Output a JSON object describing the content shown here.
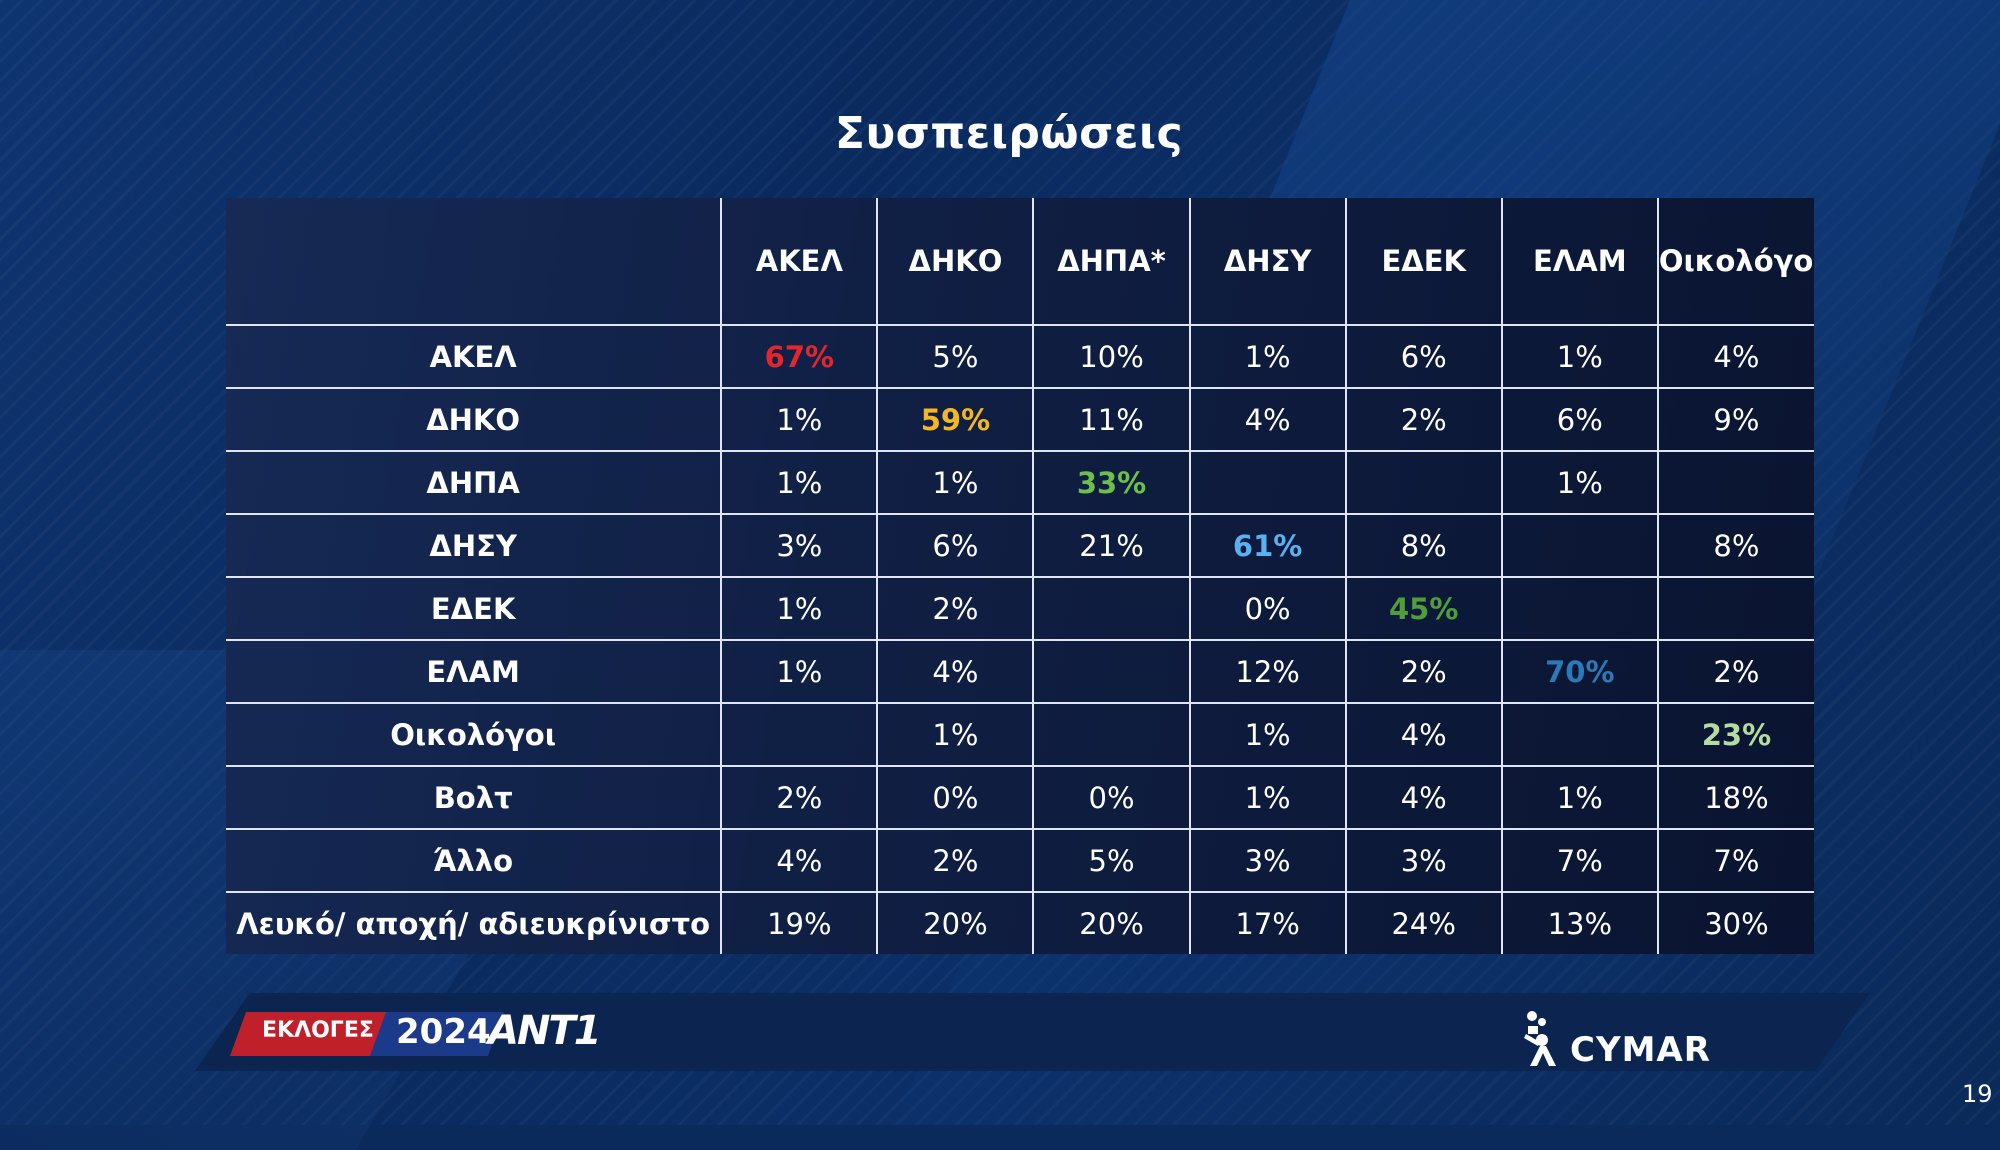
{
  "title": "Συσπειρώσεις",
  "chart_data": {
    "type": "table",
    "title": "Συσπειρώσεις",
    "columns": [
      "ΑΚΕΛ",
      "ΔΗΚΟ",
      "ΔΗΠΑ*",
      "ΔΗΣΥ",
      "ΕΔΕΚ",
      "ΕΛΑΜ",
      "Οικολόγοι"
    ],
    "rows": [
      {
        "label": "ΑΚΕΛ",
        "cells": [
          "67%",
          "5%",
          "10%",
          "1%",
          "6%",
          "1%",
          "4%"
        ],
        "highlight": 0
      },
      {
        "label": "ΔΗΚΟ",
        "cells": [
          "1%",
          "59%",
          "11%",
          "4%",
          "2%",
          "6%",
          "9%"
        ],
        "highlight": 1
      },
      {
        "label": "ΔΗΠΑ",
        "cells": [
          "1%",
          "1%",
          "33%",
          "",
          "",
          "1%",
          ""
        ],
        "highlight": 2
      },
      {
        "label": "ΔΗΣΥ",
        "cells": [
          "3%",
          "6%",
          "21%",
          "61%",
          "8%",
          "",
          "8%"
        ],
        "highlight": 3
      },
      {
        "label": "ΕΔΕΚ",
        "cells": [
          "1%",
          "2%",
          "",
          "0%",
          "45%",
          "",
          ""
        ],
        "highlight": 4
      },
      {
        "label": "ΕΛΑΜ",
        "cells": [
          "1%",
          "4%",
          "",
          "12%",
          "2%",
          "70%",
          "2%"
        ],
        "highlight": 5
      },
      {
        "label": "Οικολόγοι",
        "cells": [
          "",
          "1%",
          "",
          "1%",
          "4%",
          "",
          "23%"
        ],
        "highlight": 6
      },
      {
        "label": "Βολτ",
        "cells": [
          "2%",
          "0%",
          "0%",
          "1%",
          "4%",
          "1%",
          "18%"
        ]
      },
      {
        "label": "Άλλο",
        "cells": [
          "4%",
          "2%",
          "5%",
          "3%",
          "3%",
          "7%",
          "7%"
        ]
      },
      {
        "label": "Λευκό/ αποχή/ αδιευκρίνιστο",
        "cells": [
          "19%",
          "20%",
          "20%",
          "17%",
          "24%",
          "13%",
          "30%"
        ]
      }
    ],
    "highlight_colors": [
      "#e3262b",
      "#f2b824",
      "#6cbf4a",
      "#5ab0f0",
      "#4f9e3a",
      "#2a7ab8",
      "#b5dca0"
    ]
  },
  "footer": {
    "elections_label": "ΕΚΛΟΓΕΣ",
    "year": "2024",
    "channel": "ΑΝΤ1",
    "pollster": "CYMAR"
  },
  "page_number": "19"
}
